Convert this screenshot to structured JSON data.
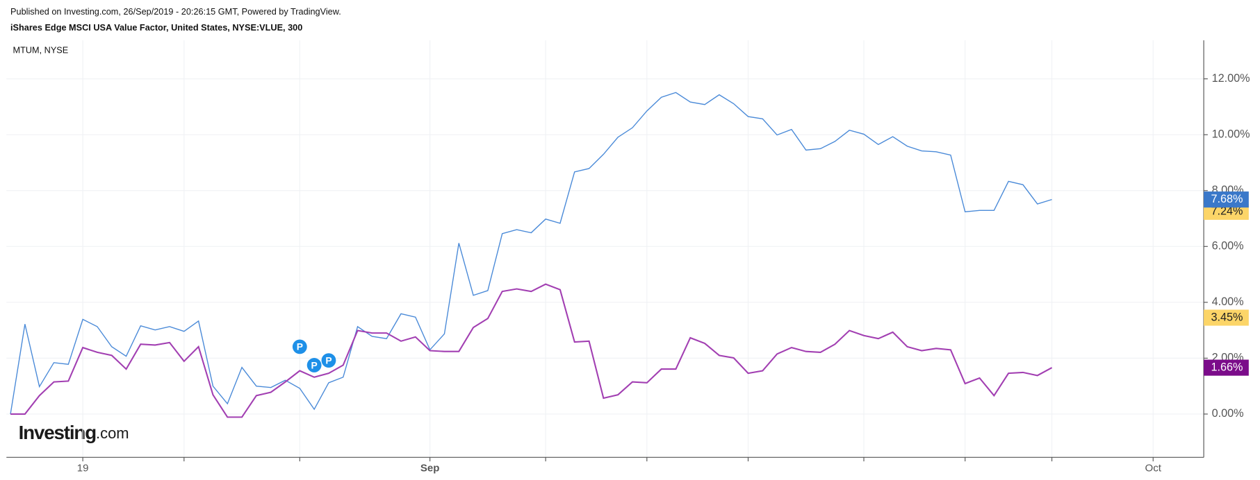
{
  "chart_data": {
    "type": "line",
    "header": "Published on Investing.com, 26/Sep/2019 - 20:26:15 GMT, Powered by TradingView.",
    "title": "iShares Edge MSCI USA Value Factor, United States, NYSE:VLUE, 300",
    "legend": "MTUM, NYSE",
    "logo": {
      "main": "Investing",
      "suffix": ".com"
    },
    "x": [
      0,
      1,
      2,
      3,
      4,
      5,
      6,
      7,
      8,
      9,
      10,
      11,
      12,
      13,
      14,
      15,
      16,
      17,
      18,
      19,
      20,
      21,
      22,
      23,
      24,
      25,
      26,
      27,
      28,
      29,
      30,
      31,
      32,
      33,
      34,
      35,
      36,
      37,
      38,
      39,
      40,
      41,
      42,
      43,
      44,
      45,
      46,
      47,
      48,
      49,
      50,
      51,
      52,
      53,
      54,
      55,
      56,
      57,
      58,
      59,
      60,
      61,
      62,
      63,
      64,
      65,
      66,
      67,
      68,
      69,
      70,
      71,
      72
    ],
    "xlim": [
      -0.28,
      82.5
    ],
    "xticks": [
      {
        "value": 5,
        "label": "19"
      },
      {
        "value": 29,
        "label": "Sep"
      },
      {
        "value": 79,
        "label": "Oct"
      }
    ],
    "minor_xticks": [
      12,
      20,
      37,
      44,
      51,
      59,
      66,
      72
    ],
    "ylim": [
      -1.55,
      13.38
    ],
    "yticks": [
      {
        "value": 0,
        "label": "0.00%"
      },
      {
        "value": 2,
        "label": "2.00%"
      },
      {
        "value": 4,
        "label": "4.00%"
      },
      {
        "value": 6,
        "label": "6.00%"
      },
      {
        "value": 8,
        "label": "8.00%"
      },
      {
        "value": 10,
        "label": "10.00%"
      },
      {
        "value": 12,
        "label": "12.00%"
      }
    ],
    "grid": true,
    "series": [
      {
        "color": "#4a8ad8",
        "end_label": "7.68%",
        "end_color": "#3a78c9",
        "values": [
          0,
          3.22,
          0.98,
          1.84,
          1.78,
          3.39,
          3.13,
          2.41,
          2.07,
          3.16,
          3.01,
          3.13,
          2.96,
          3.33,
          1.0,
          0.37,
          1.67,
          1.0,
          0.95,
          1.21,
          0.92,
          0.17,
          1.12,
          1.32,
          3.13,
          2.78,
          2.7,
          3.59,
          3.47,
          2.3,
          2.87,
          6.12,
          4.25,
          4.42,
          6.46,
          6.6,
          6.49,
          6.98,
          6.83,
          8.67,
          8.79,
          9.3,
          9.91,
          10.25,
          10.85,
          11.34,
          11.51,
          11.17,
          11.08,
          11.43,
          11.11,
          10.65,
          10.57,
          9.99,
          10.19,
          9.45,
          9.5,
          9.76,
          10.16,
          10.02,
          9.65,
          9.93,
          9.59,
          9.42,
          9.39,
          9.27,
          7.24,
          7.29,
          7.29,
          8.33,
          8.21,
          7.52,
          7.68
        ]
      },
      {
        "color": "#a23fb2",
        "end_label": "1.66%",
        "end_color": "#7b0c8a",
        "values": [
          0,
          0,
          0.66,
          1.15,
          1.18,
          2.38,
          2.21,
          2.1,
          1.61,
          2.5,
          2.47,
          2.56,
          1.89,
          2.41,
          0.69,
          -0.11,
          -0.11,
          0.66,
          0.78,
          1.15,
          1.55,
          1.32,
          1.46,
          1.75,
          2.99,
          2.9,
          2.9,
          2.61,
          2.76,
          2.27,
          2.24,
          2.24,
          3.1,
          3.42,
          4.39,
          4.48,
          4.39,
          4.65,
          4.45,
          2.58,
          2.61,
          0.57,
          0.69,
          1.15,
          1.12,
          1.61,
          1.61,
          2.73,
          2.53,
          2.1,
          2.01,
          1.46,
          1.55,
          2.15,
          2.38,
          2.24,
          2.21,
          2.5,
          2.99,
          2.81,
          2.7,
          2.93,
          2.41,
          2.27,
          2.35,
          2.3,
          1.09,
          1.29,
          0.66,
          1.46,
          1.49,
          1.38,
          1.66
        ]
      }
    ],
    "price_labels": [
      {
        "value": 7.24,
        "label": "7.24%",
        "color": "#fcd568"
      },
      {
        "value": 3.45,
        "label": "3.45%",
        "color": "#fcd568"
      }
    ],
    "events": [
      {
        "x": 20,
        "y": 2.41,
        "label": "P"
      },
      {
        "x": 21,
        "y": 1.75,
        "label": "P"
      },
      {
        "x": 22,
        "y": 1.92,
        "label": "P"
      }
    ]
  }
}
